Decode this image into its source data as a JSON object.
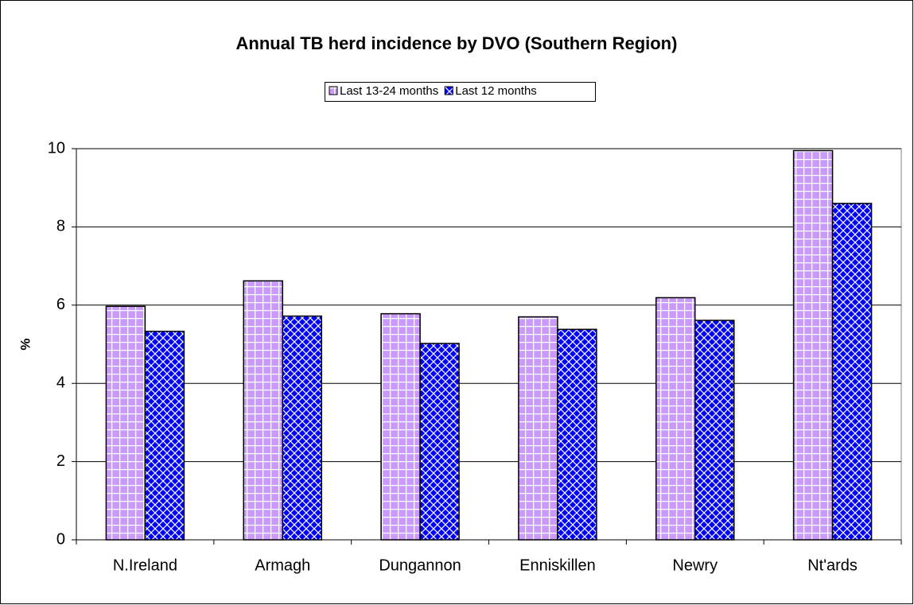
{
  "chart_data": {
    "type": "bar",
    "title": "Annual TB herd incidence by DVO (Southern Region)",
    "y_label": "%",
    "categories": [
      "N.Ireland",
      "Armagh",
      "Dungannon",
      "Enniskillen",
      "Newry",
      "Nt'ards"
    ],
    "series": [
      {
        "name": "Last 13-24 months",
        "color": "#cc99ff",
        "values": [
          5.97,
          6.62,
          5.78,
          5.7,
          6.19,
          9.95
        ]
      },
      {
        "name": "Last 12 months",
        "color": "#0000ff",
        "values": [
          5.33,
          5.72,
          5.02,
          5.38,
          5.61,
          8.6
        ]
      }
    ],
    "ylim": [
      0,
      10
    ],
    "yticks": [
      0,
      2,
      4,
      6,
      8,
      10
    ],
    "grid": true
  }
}
